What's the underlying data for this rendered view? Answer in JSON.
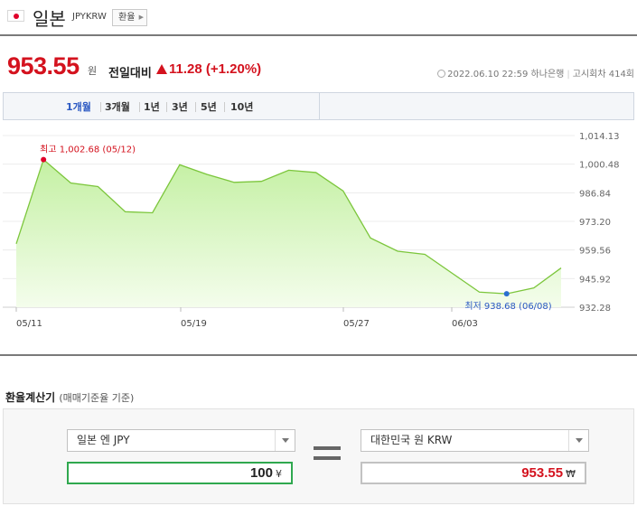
{
  "header": {
    "country": "일본",
    "code": "JPYKRW",
    "fx_button": "환율",
    "colors": {
      "flag_red": "#e0002a"
    }
  },
  "quote": {
    "rate": "953.55",
    "unit": "원",
    "change_label": "전일대비",
    "change": "11.28 (+1.20%)",
    "timestamp": "2022.06.10 22:59",
    "bank": "하나은행",
    "notice_count": "고시회차 414회",
    "colors": {
      "up": "#d4121e"
    }
  },
  "tabs": [
    {
      "label": "1개월",
      "active": true
    },
    {
      "label": "3개월",
      "active": false
    },
    {
      "label": "1년",
      "active": false
    },
    {
      "label": "3년",
      "active": false
    },
    {
      "label": "5년",
      "active": false
    },
    {
      "label": "10년",
      "active": false
    }
  ],
  "chart_data": {
    "type": "area",
    "x_ticks": [
      "05/11",
      "05/19",
      "05/27",
      "06/03"
    ],
    "y_ticks": [
      1014.13,
      1000.48,
      986.84,
      973.2,
      959.56,
      945.92,
      932.28
    ],
    "y_tick_labels": [
      "1,014.13",
      "1,000.48",
      "986.84",
      "973.20",
      "959.56",
      "945.92",
      "932.28"
    ],
    "ylim": [
      932.28,
      1014.13
    ],
    "values": [
      962.5,
      1002.68,
      991.5,
      989.8,
      977.8,
      977.3,
      1000.2,
      995.6,
      991.8,
      992.3,
      997.6,
      996.5,
      987.7,
      965.3,
      959.0,
      957.5,
      948.5,
      939.5,
      938.68,
      941.5,
      951.0
    ],
    "max": {
      "label": "최고 1,002.68 (05/12)",
      "value": 1002.68,
      "index": 1
    },
    "min": {
      "label": "최저 938.68 (06/08)",
      "value": 938.68,
      "index": 18
    },
    "colors": {
      "line": "#7cc63c",
      "fill_top": "#c4f0a3",
      "fill_bottom": "#f4fdec",
      "max_dot": "#e0002a",
      "min_dot": "#2a6fd1"
    }
  },
  "calculator": {
    "title": "환율계산기",
    "subtitle": "(매매기준율 기준)",
    "from_select": "일본 엔 JPY",
    "from_amount": "100",
    "from_currency": "¥",
    "to_select": "대한민국 원 KRW",
    "to_amount": "953.55",
    "to_currency": "₩",
    "colors": {
      "from_border": "#2fa84f",
      "to_value": "#d4121e"
    }
  }
}
